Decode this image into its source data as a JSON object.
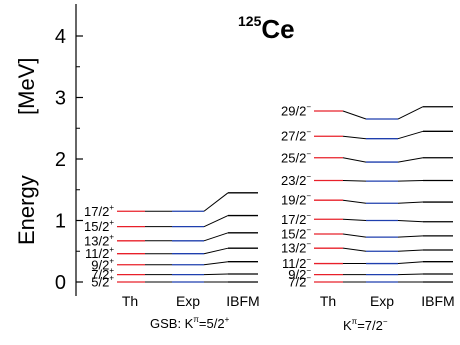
{
  "chart_data": {
    "type": "level-scheme",
    "title": {
      "mass": "125",
      "element": "Ce"
    },
    "ylabel": "Energy",
    "yunit": "[MeV]",
    "ylim": [
      -0.1,
      4.5
    ],
    "yticks": [
      "0",
      "1",
      "2",
      "3",
      "4"
    ],
    "colors": {
      "th": "#e8202a",
      "exp": "#1f3fae",
      "ibfm": "#000000",
      "connector": "#000000"
    },
    "columns": [
      "Th",
      "Exp",
      "IBFM"
    ],
    "bands": [
      {
        "name": "GSB: K",
        "label_pi": "π",
        "label_value": "=5/2",
        "label_parity": "+",
        "levels": [
          {
            "spin": "5/2",
            "parity": "+",
            "th": 0.0,
            "exp": 0.0,
            "ibfm": 0.0
          },
          {
            "spin": "7/2",
            "parity": "+",
            "th": 0.12,
            "exp": 0.12,
            "ibfm": 0.13
          },
          {
            "spin": "9/2",
            "parity": "+",
            "th": 0.28,
            "exp": 0.28,
            "ibfm": 0.33
          },
          {
            "spin": "11/2",
            "parity": "+",
            "th": 0.46,
            "exp": 0.46,
            "ibfm": 0.55
          },
          {
            "spin": "13/2",
            "parity": "+",
            "th": 0.67,
            "exp": 0.67,
            "ibfm": 0.8
          },
          {
            "spin": "15/2",
            "parity": "+",
            "th": 0.9,
            "exp": 0.9,
            "ibfm": 1.08
          },
          {
            "spin": "17/2",
            "parity": "+",
            "th": 1.15,
            "exp": 1.15,
            "ibfm": 1.45
          }
        ]
      },
      {
        "name": "K",
        "label_pi": "π",
        "label_value": "=7/2",
        "label_parity": "−",
        "levels": [
          {
            "spin": "7/2",
            "parity": "−",
            "th": 0.0,
            "exp": 0.0,
            "ibfm": 0.0
          },
          {
            "spin": "9/2",
            "parity": "−",
            "th": 0.12,
            "exp": 0.12,
            "ibfm": 0.13
          },
          {
            "spin": "11/2",
            "parity": "−",
            "th": 0.3,
            "exp": 0.3,
            "ibfm": 0.33
          },
          {
            "spin": "13/2",
            "parity": "−",
            "th": 0.55,
            "exp": 0.5,
            "ibfm": 0.52
          },
          {
            "spin": "15/2",
            "parity": "−",
            "th": 0.78,
            "exp": 0.73,
            "ibfm": 0.75
          },
          {
            "spin": "17/2",
            "parity": "−",
            "th": 1.02,
            "exp": 1.0,
            "ibfm": 0.98
          },
          {
            "spin": "19/2",
            "parity": "−",
            "th": 1.33,
            "exp": 1.28,
            "ibfm": 1.3
          },
          {
            "spin": "23/2",
            "parity": "−",
            "th": 1.65,
            "exp": 1.64,
            "ibfm": 1.65
          },
          {
            "spin": "25/2",
            "parity": "−",
            "th": 2.02,
            "exp": 1.95,
            "ibfm": 2.02
          },
          {
            "spin": "27/2",
            "parity": "−",
            "th": 2.37,
            "exp": 2.33,
            "ibfm": 2.45
          },
          {
            "spin": "29/2",
            "parity": "−",
            "th": 2.78,
            "exp": 2.65,
            "ibfm": 2.85
          }
        ]
      }
    ]
  }
}
